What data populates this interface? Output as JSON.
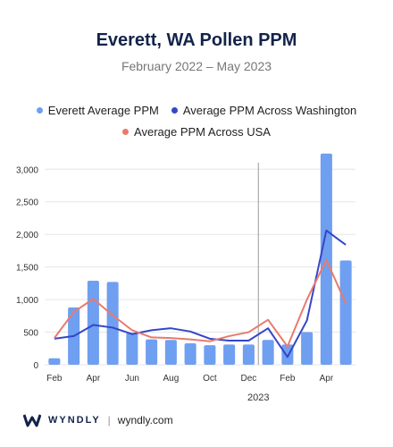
{
  "chart_data": {
    "type": "bar",
    "title": "Everett, WA Pollen PPM",
    "subtitle": "February 2022 – May 2023",
    "x_tick_labels": [
      "Feb",
      "Apr",
      "Jun",
      "Aug",
      "Oct",
      "Dec",
      "Feb",
      "Apr"
    ],
    "year_marker_label": "2023",
    "y_ticks": [
      0,
      500,
      1000,
      1500,
      2000,
      2500,
      3000
    ],
    "y_tick_labels": [
      "0",
      "500",
      "1,000",
      "1,500",
      "2,000",
      "2,500",
      "3,000"
    ],
    "ylim": [
      0,
      3100
    ],
    "grid": true,
    "legend_position": "top",
    "categories": [
      "Feb 2022",
      "Mar 2022",
      "Apr 2022",
      "May 2022",
      "Jun 2022",
      "Jul 2022",
      "Aug 2022",
      "Sep 2022",
      "Oct 2022",
      "Nov 2022",
      "Dec 2022",
      "Jan 2023",
      "Feb 2023",
      "Mar 2023",
      "Apr 2023",
      "May 2023"
    ],
    "series": [
      {
        "name": "Everett Average PPM",
        "type": "bar",
        "color": "#6f9ff0",
        "values": [
          100,
          880,
          1290,
          1270,
          490,
          390,
          380,
          330,
          300,
          310,
          310,
          380,
          310,
          500,
          3240,
          1600
        ]
      },
      {
        "name": "Average PPM Across Washington",
        "type": "line",
        "color": "#3446c9",
        "values": [
          400,
          440,
          610,
          570,
          470,
          530,
          560,
          510,
          400,
          370,
          370,
          560,
          120,
          680,
          2060,
          1840
        ]
      },
      {
        "name": "Average PPM Across USA",
        "type": "line",
        "color": "#e87a6d",
        "values": [
          410,
          810,
          1010,
          760,
          530,
          420,
          410,
          390,
          360,
          440,
          500,
          690,
          280,
          1000,
          1610,
          940
        ]
      }
    ]
  },
  "footer": {
    "brand": "WYNDLY",
    "separator": "|",
    "url": "wyndly.com"
  }
}
